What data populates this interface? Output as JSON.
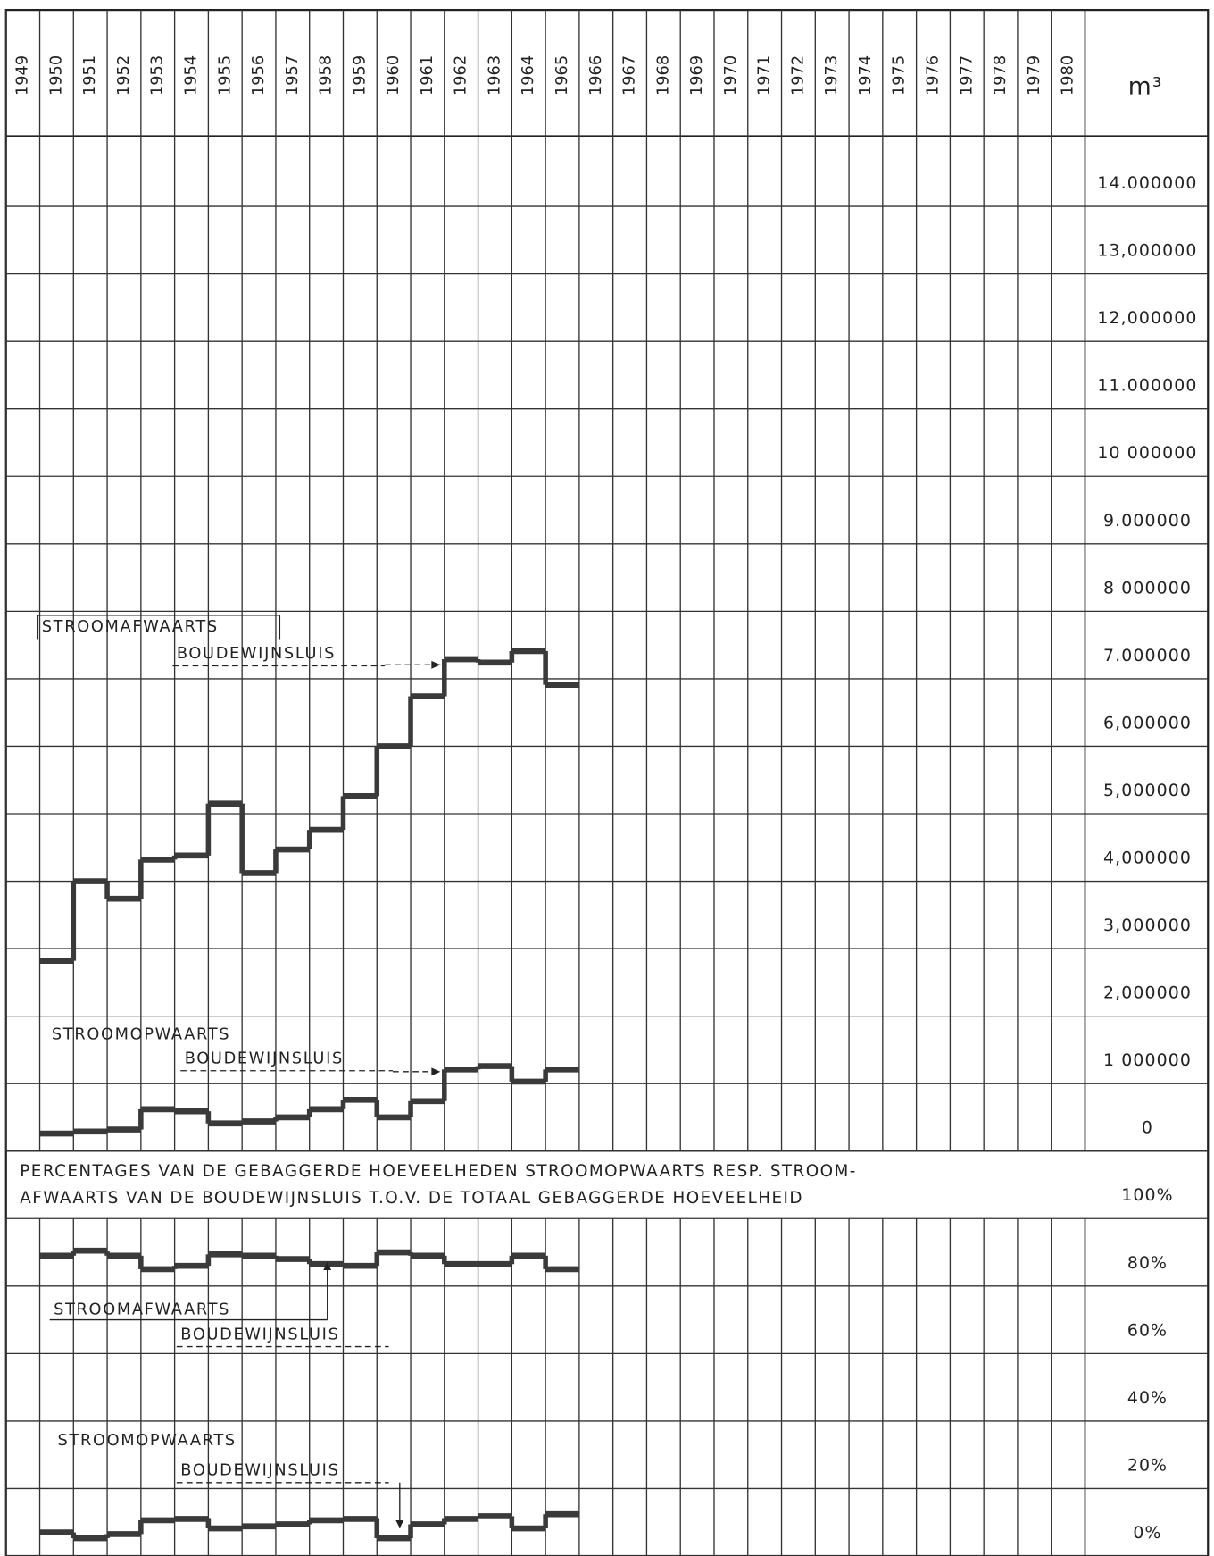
{
  "chart_data": [
    {
      "type": "step",
      "unit_label": "m³",
      "categories": [
        "1949",
        "1950",
        "1951",
        "1952",
        "1953",
        "1954",
        "1955",
        "1956",
        "1957",
        "1958",
        "1959",
        "1960",
        "1961",
        "1962",
        "1963",
        "1964",
        "1965",
        "1966",
        "1967",
        "1968",
        "1969",
        "1970",
        "1971",
        "1972",
        "1973",
        "1974",
        "1975",
        "1976",
        "1977",
        "1978",
        "1979",
        "1980"
      ],
      "ylim": [
        0,
        15000000
      ],
      "yticks": [
        0,
        {
          "value": 1000000,
          "label": "1 000000"
        },
        {
          "value": 2000000,
          "label": "2,000000"
        },
        {
          "value": 3000000,
          "label": "3,000000"
        },
        {
          "value": 4000000,
          "label": "4,000000"
        },
        {
          "value": 5000000,
          "label": "5,000000"
        },
        {
          "value": 6000000,
          "label": "6,000000"
        },
        {
          "value": 7000000,
          "label": "7.000000"
        },
        {
          "value": 8000000,
          "label": "8 000000"
        },
        {
          "value": 9000000,
          "label": "9.000000"
        },
        {
          "value": 10000000,
          "label": "10 000000"
        },
        {
          "value": 11000000,
          "label": "11.000000"
        },
        {
          "value": 12000000,
          "label": "12,000000"
        },
        {
          "value": 13000000,
          "label": "13,000000"
        },
        {
          "value": 14000000,
          "label": "14.000000"
        }
      ],
      "grid": true,
      "series": [
        {
          "name_lines": [
            "STROOMAFWAARTS",
            "BOUDEWIJNSLUIS"
          ],
          "color": "#3a3a3a",
          "values": [
            null,
            2820000,
            4000000,
            3740000,
            4320000,
            4380000,
            5150000,
            4120000,
            4470000,
            4760000,
            5260000,
            6000000,
            6740000,
            7290000,
            7240000,
            7410000,
            6910000,
            null,
            null,
            null,
            null,
            null,
            null,
            null,
            null,
            null,
            null,
            null,
            null,
            null,
            null,
            null
          ]
        },
        {
          "name_lines": [
            "STROOMOPWAARTS",
            "BOUDEWIJNSLUIS"
          ],
          "color": "#3a3a3a",
          "values": [
            null,
            260000,
            290000,
            320000,
            620000,
            590000,
            410000,
            440000,
            500000,
            620000,
            760000,
            500000,
            740000,
            1210000,
            1260000,
            1030000,
            1210000,
            null,
            null,
            null,
            null,
            null,
            null,
            null,
            null,
            null,
            null,
            null,
            null,
            null,
            null,
            null
          ]
        }
      ]
    },
    {
      "type": "step",
      "title_lines": [
        "PERCENTAGES VAN DE GEBAGGERDE HOEVEELHEDEN STROOMOPWAARTS RESP. STROOM-",
        "AFWAARTS VAN DE BOUDEWIJNSLUIS T.O.V. DE TOTAAL GEBAGGERDE HOEVEELHEID"
      ],
      "ylim": [
        0,
        100
      ],
      "yticks": [
        {
          "value": 0,
          "label": "0%"
        },
        {
          "value": 20,
          "label": "20%"
        },
        {
          "value": 40,
          "label": "40%"
        },
        {
          "value": 60,
          "label": "60%"
        },
        {
          "value": 80,
          "label": "80%"
        },
        {
          "value": 100,
          "label": "100%"
        }
      ],
      "grid": true,
      "series": [
        {
          "name_lines": [
            "STROOMAFWAARTS",
            "BOUDEWIJNSLUIS"
          ],
          "color": "#3a3a3a",
          "values": [
            null,
            89,
            90.5,
            89,
            85,
            86,
            89.4,
            89,
            88,
            86.5,
            86,
            90,
            89,
            86.5,
            86.5,
            89,
            85,
            null,
            null,
            null,
            null,
            null,
            null,
            null,
            null,
            null,
            null,
            null,
            null,
            null,
            null,
            null
          ]
        },
        {
          "name_lines": [
            "STROOMOPWAARTS",
            "BOUDEWIJNSLUIS"
          ],
          "color": "#3a3a3a",
          "values": [
            null,
            7,
            5.3,
            6.5,
            10.6,
            11,
            8.2,
            8.8,
            9.4,
            10.6,
            11,
            5.3,
            9.4,
            11,
            11.8,
            8.2,
            12.4,
            null,
            null,
            null,
            null,
            null,
            null,
            null,
            null,
            null,
            null,
            null,
            null,
            null,
            null,
            null
          ]
        }
      ]
    }
  ]
}
